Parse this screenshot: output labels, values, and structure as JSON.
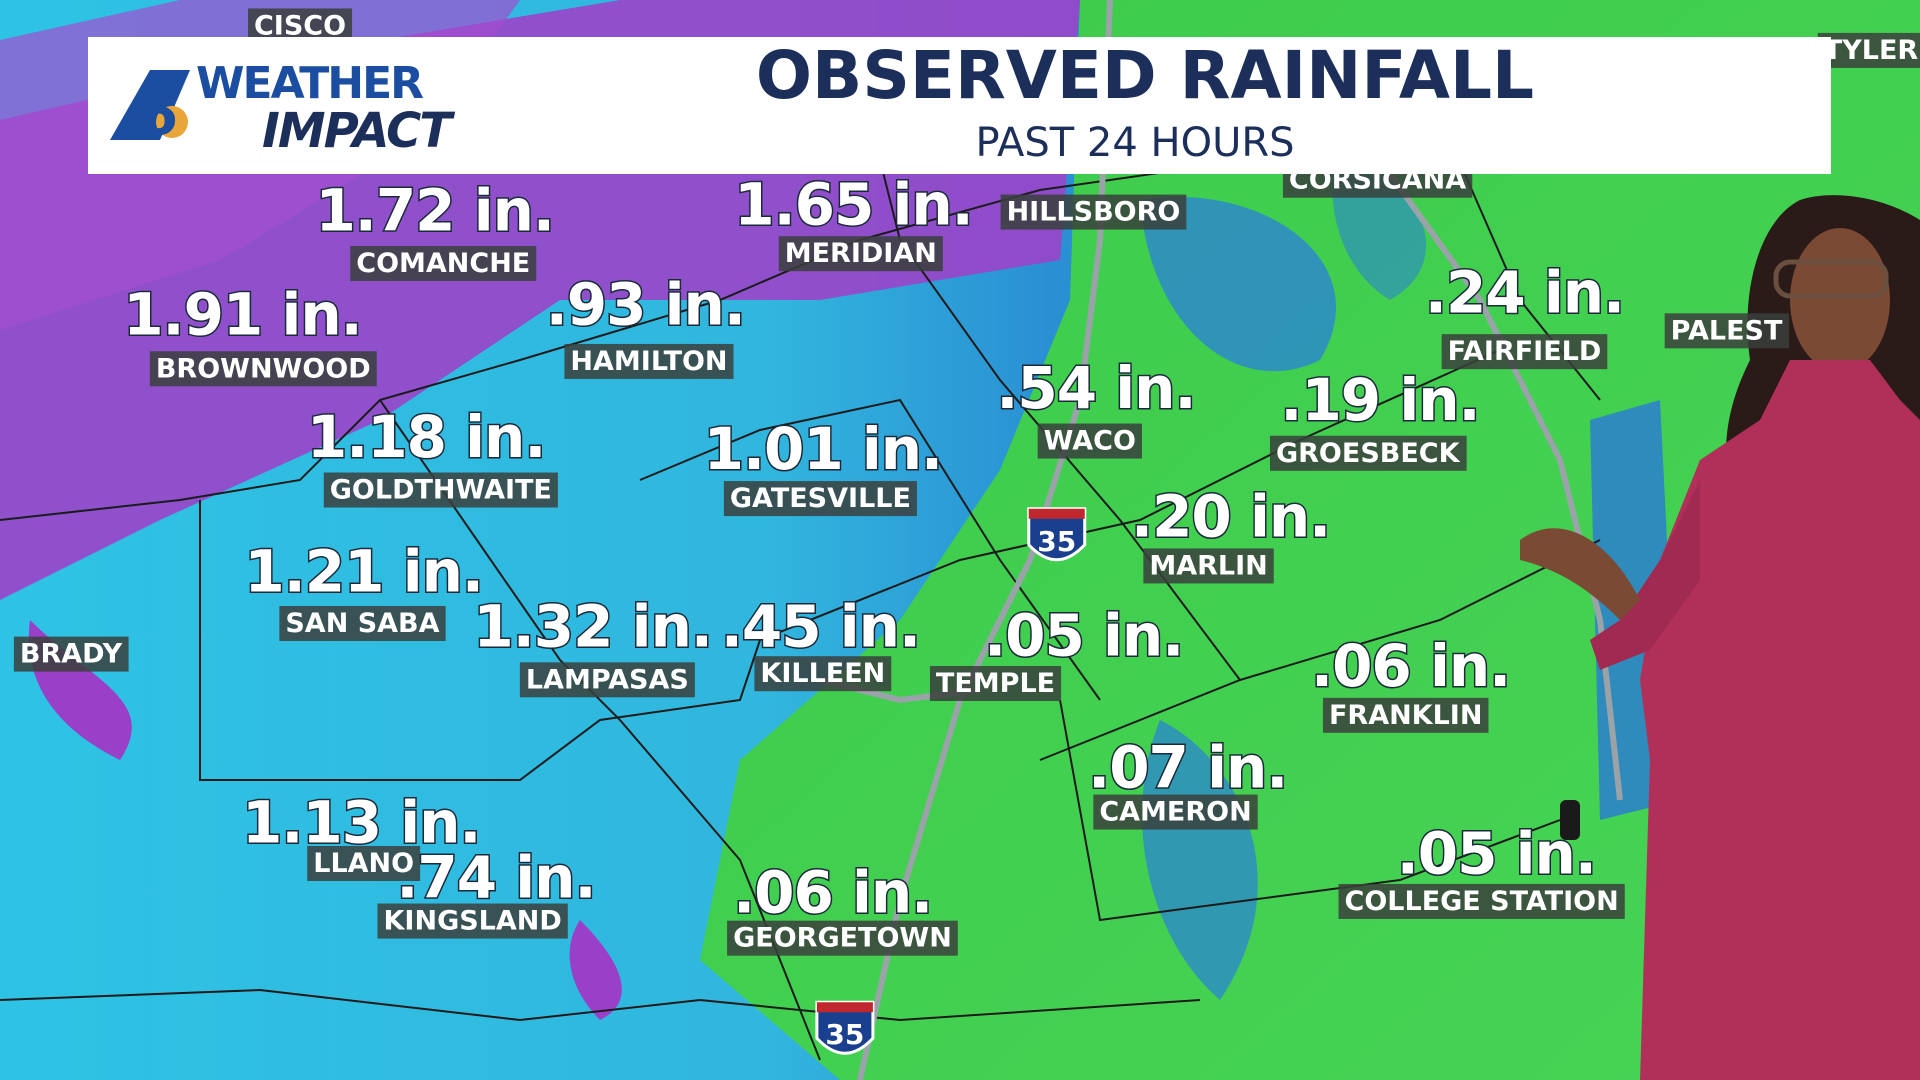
{
  "header": {
    "brand_top": "WEATHER",
    "brand_bottom": "IMPACT",
    "logo_number": "6",
    "title": "OBSERVED RAINFALL",
    "subtitle": "PAST 24 HOURS"
  },
  "map": {
    "rainfall": [
      {
        "amount": "1.72 in.",
        "city": "COMANCHE"
      },
      {
        "amount": "1.65 in.",
        "city": "MERIDIAN"
      },
      {
        "amount": "1.91 in.",
        "city": "BROWNWOOD"
      },
      {
        "amount": ".93 in.",
        "city": "HAMILTON"
      },
      {
        "amount": ".24 in.",
        "city": "FAIRFIELD"
      },
      {
        "amount": ".54 in.",
        "city": "WACO"
      },
      {
        "amount": ".19 in.",
        "city": "GROESBECK"
      },
      {
        "amount": "1.18 in.",
        "city": "GOLDTHWAITE"
      },
      {
        "amount": "1.01 in.",
        "city": "GATESVILLE"
      },
      {
        "amount": ".20 in.",
        "city": "MARLIN"
      },
      {
        "amount": "1.21 in.",
        "city": "SAN SABA"
      },
      {
        "amount": "1.32 in.",
        "city": "LAMPASAS"
      },
      {
        "amount": ".45 in.",
        "city": "KILLEEN"
      },
      {
        "amount": ".05 in.",
        "city": "TEMPLE"
      },
      {
        "amount": ".06 in.",
        "city": "FRANKLIN"
      },
      {
        "amount": ".07 in.",
        "city": "CAMERON"
      },
      {
        "amount": "1.13 in.",
        "city": "LLANO"
      },
      {
        "amount": ".74 in.",
        "city": "KINGSLAND"
      },
      {
        "amount": ".06 in.",
        "city": "GEORGETOWN"
      },
      {
        "amount": ".05 in.",
        "city": "COLLEGE STATION"
      }
    ],
    "other_cities": [
      "HILLSBORO",
      "BRADY",
      "TYLER",
      "CORSICANA",
      "PALEST",
      "CISCO"
    ],
    "shields": [
      "35",
      "35"
    ]
  }
}
